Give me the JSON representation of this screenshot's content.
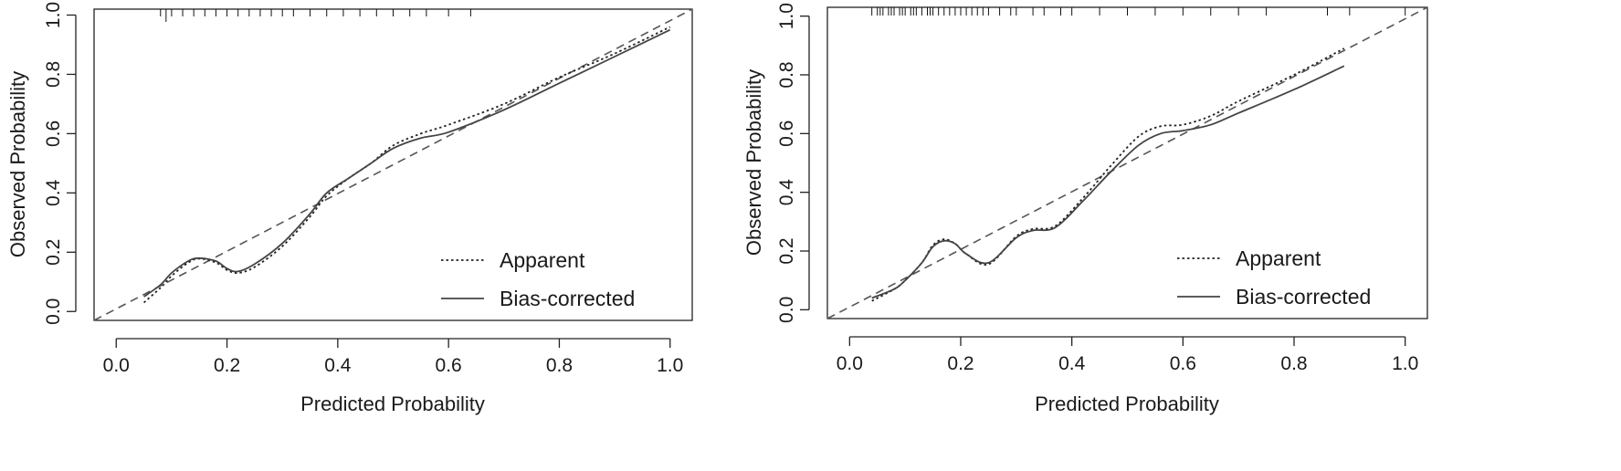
{
  "chart_data": [
    {
      "type": "line",
      "xlabel": "Predicted Probability",
      "ylabel": "Observed Probability",
      "xlim": [
        -0.04,
        1.04
      ],
      "ylim": [
        -0.03,
        1.02
      ],
      "x_ticks": [
        "0.0",
        "0.2",
        "0.4",
        "0.6",
        "0.8",
        "1.0"
      ],
      "y_ticks": [
        "0.0",
        "0.2",
        "0.4",
        "0.6",
        "0.8",
        "1.0"
      ],
      "grid": false,
      "legend_position": "bottom-right",
      "reference_line": {
        "x": [
          -0.04,
          1.04
        ],
        "y": [
          -0.04,
          1.04
        ]
      },
      "rug": [
        0.08,
        0.09,
        0.1,
        0.12,
        0.14,
        0.16,
        0.18,
        0.2,
        0.22,
        0.24,
        0.26,
        0.28,
        0.3,
        0.32,
        0.35,
        0.38,
        0.41,
        0.44,
        0.47,
        0.5,
        0.53,
        0.56,
        0.6,
        0.64
      ],
      "series": [
        {
          "name": "Apparent",
          "style": "dotted",
          "x": [
            0.05,
            0.08,
            0.1,
            0.13,
            0.15,
            0.18,
            0.2,
            0.22,
            0.25,
            0.3,
            0.35,
            0.38,
            0.42,
            0.46,
            0.5,
            0.55,
            0.6,
            0.7,
            0.8,
            0.9,
            1.0
          ],
          "y": [
            0.03,
            0.08,
            0.12,
            0.165,
            0.178,
            0.165,
            0.14,
            0.13,
            0.15,
            0.22,
            0.32,
            0.39,
            0.45,
            0.5,
            0.56,
            0.6,
            0.63,
            0.7,
            0.79,
            0.87,
            0.96
          ]
        },
        {
          "name": "Bias-corrected",
          "style": "solid",
          "x": [
            0.05,
            0.08,
            0.1,
            0.13,
            0.15,
            0.18,
            0.2,
            0.22,
            0.25,
            0.3,
            0.35,
            0.38,
            0.42,
            0.46,
            0.5,
            0.55,
            0.6,
            0.7,
            0.8,
            0.9,
            1.0
          ],
          "y": [
            0.05,
            0.09,
            0.13,
            0.17,
            0.18,
            0.17,
            0.145,
            0.135,
            0.16,
            0.23,
            0.33,
            0.4,
            0.45,
            0.5,
            0.55,
            0.585,
            0.605,
            0.68,
            0.77,
            0.86,
            0.95
          ]
        }
      ]
    },
    {
      "type": "line",
      "xlabel": "Predicted Probability",
      "ylabel": "Observed Probability",
      "xlim": [
        -0.04,
        1.04
      ],
      "ylim": [
        -0.03,
        1.03
      ],
      "x_ticks": [
        "0.0",
        "0.2",
        "0.4",
        "0.6",
        "0.8",
        "1.0"
      ],
      "y_ticks": [
        "0.0",
        "0.2",
        "0.4",
        "0.6",
        "0.8",
        "1.0"
      ],
      "grid": false,
      "legend_position": "bottom-right",
      "reference_line": {
        "x": [
          -0.04,
          1.04
        ],
        "y": [
          -0.04,
          1.04
        ]
      },
      "rug": [
        0.04,
        0.05,
        0.055,
        0.06,
        0.07,
        0.075,
        0.08,
        0.09,
        0.095,
        0.1,
        0.11,
        0.115,
        0.12,
        0.13,
        0.14,
        0.145,
        0.15,
        0.16,
        0.17,
        0.18,
        0.19,
        0.2,
        0.21,
        0.22,
        0.23,
        0.24,
        0.25,
        0.27,
        0.29,
        0.3,
        0.33,
        0.35,
        0.38,
        0.4,
        0.45,
        0.5,
        0.55,
        0.6,
        0.65,
        0.7,
        0.75,
        0.86,
        0.9,
        1.0
      ],
      "series": [
        {
          "name": "Apparent",
          "style": "dotted",
          "x": [
            0.04,
            0.08,
            0.1,
            0.13,
            0.15,
            0.17,
            0.19,
            0.21,
            0.25,
            0.3,
            0.33,
            0.37,
            0.42,
            0.47,
            0.52,
            0.56,
            0.6,
            0.65,
            0.7,
            0.8,
            0.89
          ],
          "y": [
            0.03,
            0.07,
            0.1,
            0.16,
            0.22,
            0.24,
            0.225,
            0.19,
            0.155,
            0.25,
            0.275,
            0.285,
            0.38,
            0.49,
            0.59,
            0.625,
            0.63,
            0.66,
            0.71,
            0.8,
            0.89
          ]
        },
        {
          "name": "Bias-corrected",
          "style": "solid",
          "x": [
            0.04,
            0.08,
            0.1,
            0.13,
            0.15,
            0.17,
            0.19,
            0.21,
            0.25,
            0.3,
            0.33,
            0.37,
            0.42,
            0.47,
            0.52,
            0.56,
            0.6,
            0.65,
            0.7,
            0.8,
            0.89
          ],
          "y": [
            0.04,
            0.07,
            0.1,
            0.16,
            0.215,
            0.235,
            0.225,
            0.19,
            0.16,
            0.245,
            0.27,
            0.28,
            0.37,
            0.47,
            0.56,
            0.6,
            0.61,
            0.63,
            0.67,
            0.75,
            0.83
          ]
        }
      ]
    }
  ]
}
